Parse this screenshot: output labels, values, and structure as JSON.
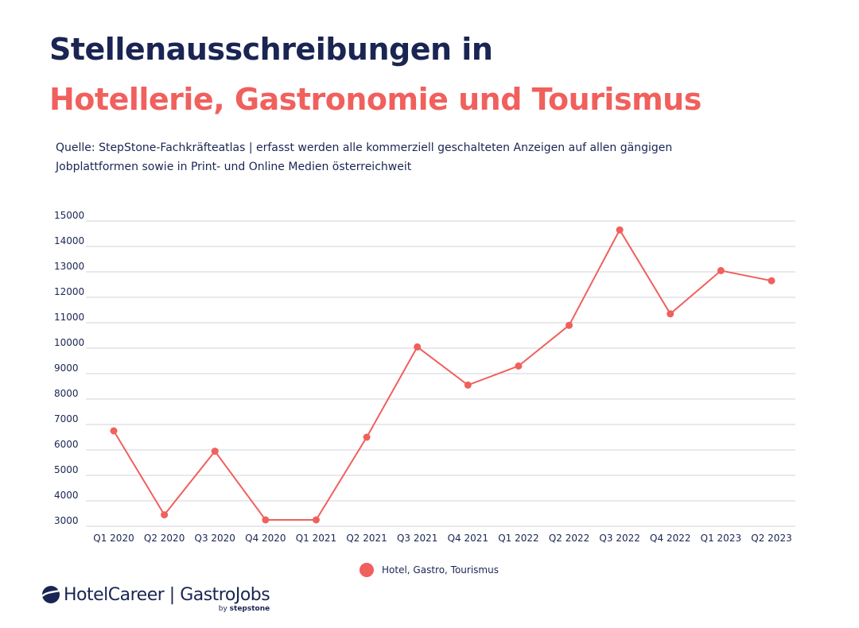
{
  "header": {
    "title_line1": "Stellenausschreibungen in",
    "title_line2": "Hotellerie, Gastronomie und Tourismus",
    "source": "Quelle: StepStone-Fachkräfteatlas | erfasst werden alle kommerziell geschalteten Anzeigen auf allen gängigen Jobplattformen sowie in Print- und Online Medien österreichweit"
  },
  "colors": {
    "accent": "#f0605d",
    "navy": "#1a2553",
    "grid": "#d0d3db"
  },
  "chart_data": {
    "type": "line",
    "categories": [
      "Q1 2020",
      "Q2 2020",
      "Q3 2020",
      "Q4 2020",
      "Q1 2021",
      "Q2 2021",
      "Q3 2021",
      "Q4 2021",
      "Q1 2022",
      "Q2 2022",
      "Q3 2022",
      "Q4 2022",
      "Q1 2023",
      "Q2 2023"
    ],
    "series": [
      {
        "name": "Hotel, Gastro, Tourismus",
        "values": [
          6750,
          3450,
          5950,
          3250,
          3250,
          6500,
          10050,
          8550,
          9300,
          10900,
          14650,
          11350,
          13050,
          12650
        ]
      }
    ],
    "y_ticks": [
      3000,
      4000,
      5000,
      6000,
      7000,
      8000,
      9000,
      10000,
      11000,
      12000,
      13000,
      14000,
      15000
    ],
    "ylim": [
      2700,
      15250
    ],
    "grid": true,
    "legend_position": "bottom-center"
  },
  "logo": {
    "icon": "stepstone-logo-icon",
    "text": "HotelCareer | GastroJobs",
    "sub_prefix": "by ",
    "sub_brand": "stepstone"
  }
}
